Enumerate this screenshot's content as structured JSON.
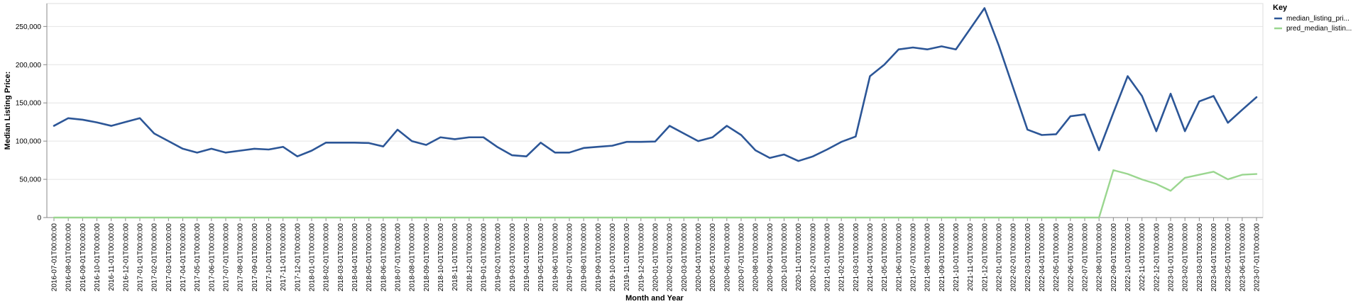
{
  "chart_data": {
    "type": "line",
    "xlabel": "Month and Year",
    "ylabel": "Median Listing Price:",
    "ylim": [
      0,
      280000
    ],
    "yticks": [
      0,
      50000,
      100000,
      150000,
      200000,
      250000
    ],
    "ytick_labels": [
      "0",
      "50,000",
      "100,000",
      "150,000",
      "200,000",
      "250,000"
    ],
    "grid": true,
    "legend": {
      "title": "Key",
      "placement": "top-right",
      "entries": [
        "median_listing_pri...",
        "pred_median_listin..."
      ]
    },
    "categories": [
      "2016-07-01T00:00:00",
      "2016-08-01T00:00:00",
      "2016-09-01T00:00:00",
      "2016-10-01T00:00:00",
      "2016-11-01T00:00:00",
      "2016-12-01T00:00:00",
      "2017-01-01T00:00:00",
      "2017-02-01T00:00:00",
      "2017-03-01T00:00:00",
      "2017-04-01T00:00:00",
      "2017-05-01T00:00:00",
      "2017-06-01T00:00:00",
      "2017-07-01T00:00:00",
      "2017-08-01T00:00:00",
      "2017-09-01T00:00:00",
      "2017-10-01T00:00:00",
      "2017-11-01T00:00:00",
      "2017-12-01T00:00:00",
      "2018-01-01T00:00:00",
      "2018-02-01T00:00:00",
      "2018-03-01T00:00:00",
      "2018-04-01T00:00:00",
      "2018-05-01T00:00:00",
      "2018-06-01T00:00:00",
      "2018-07-01T00:00:00",
      "2018-08-01T00:00:00",
      "2018-09-01T00:00:00",
      "2018-10-01T00:00:00",
      "2018-11-01T00:00:00",
      "2018-12-01T00:00:00",
      "2019-01-01T00:00:00",
      "2019-02-01T00:00:00",
      "2019-03-01T00:00:00",
      "2019-04-01T00:00:00",
      "2019-05-01T00:00:00",
      "2019-06-01T00:00:00",
      "2019-07-01T00:00:00",
      "2019-08-01T00:00:00",
      "2019-09-01T00:00:00",
      "2019-10-01T00:00:00",
      "2019-11-01T00:00:00",
      "2019-12-01T00:00:00",
      "2020-01-01T00:00:00",
      "2020-02-01T00:00:00",
      "2020-03-01T00:00:00",
      "2020-04-01T00:00:00",
      "2020-05-01T00:00:00",
      "2020-06-01T00:00:00",
      "2020-07-01T00:00:00",
      "2020-08-01T00:00:00",
      "2020-09-01T00:00:00",
      "2020-10-01T00:00:00",
      "2020-11-01T00:00:00",
      "2020-12-01T00:00:00",
      "2021-01-01T00:00:00",
      "2021-02-01T00:00:00",
      "2021-03-01T00:00:00",
      "2021-04-01T00:00:00",
      "2021-05-01T00:00:00",
      "2021-06-01T00:00:00",
      "2021-07-01T00:00:00",
      "2021-08-01T00:00:00",
      "2021-09-01T00:00:00",
      "2021-10-01T00:00:00",
      "2021-11-01T00:00:00",
      "2021-12-01T00:00:00",
      "2022-01-01T00:00:00",
      "2022-02-01T00:00:00",
      "2022-03-01T00:00:00",
      "2022-04-01T00:00:00",
      "2022-05-01T00:00:00",
      "2022-06-01T00:00:00",
      "2022-07-01T00:00:00",
      "2022-08-01T00:00:00",
      "2022-09-01T00:00:00",
      "2022-10-01T00:00:00",
      "2022-11-01T00:00:00",
      "2022-12-01T00:00:00",
      "2023-01-01T00:00:00",
      "2023-02-01T00:00:00",
      "2023-03-01T00:00:00",
      "2023-04-01T00:00:00",
      "2023-05-01T00:00:00",
      "2023-06-01T00:00:00",
      "2023-07-01T00:00:00"
    ],
    "series": [
      {
        "name": "median_listing_pri...",
        "color": "#2c5697",
        "values": [
          120000,
          130000,
          128000,
          124500,
          120000,
          125000,
          130000,
          110000,
          100000,
          90000,
          85000,
          90000,
          85000,
          87500,
          90000,
          89000,
          92500,
          80000,
          87500,
          98000,
          98000,
          98000,
          97500,
          93000,
          115000,
          100000,
          95000,
          105000,
          102500,
          105000,
          105000,
          92000,
          81500,
          80000,
          98000,
          85000,
          85000,
          91000,
          92500,
          94000,
          99000,
          99000,
          99500,
          120000,
          110000,
          100000,
          105000,
          120000,
          108000,
          88000,
          78000,
          82500,
          74000,
          79900,
          89000,
          99000,
          106000,
          185000,
          200000,
          220000,
          222500,
          220000,
          224000,
          220000,
          247000,
          274000,
          225000,
          170000,
          115000,
          108000,
          109000,
          132500,
          135000,
          88000,
          137000,
          185000,
          159000,
          113000,
          162000,
          113000,
          152000,
          159000,
          124000,
          141000,
          157500
        ]
      },
      {
        "name": "pred_median_listin...",
        "color": "#9ad68f",
        "values": [
          0,
          0,
          0,
          0,
          0,
          0,
          0,
          0,
          0,
          0,
          0,
          0,
          0,
          0,
          0,
          0,
          0,
          0,
          0,
          0,
          0,
          0,
          0,
          0,
          0,
          0,
          0,
          0,
          0,
          0,
          0,
          0,
          0,
          0,
          0,
          0,
          0,
          0,
          0,
          0,
          0,
          0,
          0,
          0,
          0,
          0,
          0,
          0,
          0,
          0,
          0,
          0,
          0,
          0,
          0,
          0,
          0,
          0,
          0,
          0,
          0,
          0,
          0,
          0,
          0,
          0,
          0,
          0,
          0,
          0,
          0,
          0,
          0,
          0,
          62000,
          57000,
          49800,
          44000,
          35000,
          52000,
          56000,
          60000,
          50000,
          56000,
          57000
        ]
      }
    ]
  }
}
